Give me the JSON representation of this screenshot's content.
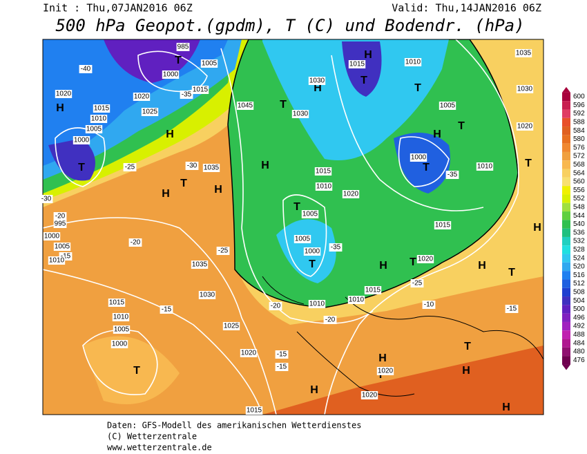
{
  "header": {
    "init": "Init : Thu,07JAN2016 06Z",
    "valid": "Valid: Thu,14JAN2016 06Z",
    "title": "500 hPa Geopot.(gpdm), T (C) und Bodendr. (hPa)"
  },
  "colorbar": {
    "labels": [
      600,
      596,
      592,
      588,
      584,
      580,
      576,
      572,
      568,
      564,
      560,
      556,
      552,
      548,
      544,
      540,
      536,
      532,
      528,
      524,
      520,
      516,
      512,
      508,
      504,
      500,
      496,
      492,
      488,
      484,
      480,
      476
    ],
    "colors": [
      "#a8003c",
      "#c81e50",
      "#e03c64",
      "#e8502a",
      "#e06020",
      "#e87020",
      "#f08830",
      "#f0a040",
      "#f8b850",
      "#f8d060",
      "#f8e070",
      "#f0f000",
      "#d8f000",
      "#a0e040",
      "#60d040",
      "#30c050",
      "#20c080",
      "#20d0c0",
      "#20e0e0",
      "#30c8f0",
      "#30a8f0",
      "#2080f0",
      "#2060e0",
      "#2040d0",
      "#4030c0",
      "#6020c0",
      "#8020c0",
      "#a020c0",
      "#c020b0",
      "#b01890",
      "#901070",
      "#700050"
    ]
  },
  "map": {
    "labels": [
      "985",
      "1000",
      "1005",
      "1015",
      "1020",
      "1020",
      "1025",
      "1015",
      "1010",
      "1005",
      "1000",
      "H",
      "H",
      "T",
      "T",
      "-40",
      "-35",
      "-30",
      "1035",
      "H",
      "H",
      "1030",
      "H",
      "T",
      "1045",
      "1030",
      "T",
      "1015",
      "H",
      "1010",
      "T",
      "1005",
      "T",
      "H",
      "1000",
      "T",
      "-35",
      "1030",
      "1020",
      "1035",
      "1010",
      "T",
      "H",
      "1015",
      "1020",
      "T",
      "H",
      "H",
      "T",
      "1015",
      "1010",
      "1020",
      "T",
      "1005",
      "1000",
      "T",
      "-35",
      "1005",
      "1035",
      "1030",
      "1025",
      "1020",
      "-25",
      "-20",
      "-15",
      "1015",
      "1010",
      "1005",
      "1000",
      "T",
      "-15",
      "-15",
      "-15",
      "1010",
      "1010",
      "1015",
      "-20",
      "-20",
      "H",
      "T",
      "1020",
      "1020",
      "H",
      "T",
      "H",
      "H",
      "1015",
      "-15",
      "-10",
      "-25",
      "995",
      "1000",
      "1005",
      "1010",
      "H",
      "T",
      "-20",
      "-30",
      "-25"
    ]
  },
  "footer": {
    "lines": [
      "Daten: GFS-Modell des amerikanischen Wetterdienstes",
      "(C) Wetterzentrale",
      "www.wetterzentrale.de"
    ]
  }
}
